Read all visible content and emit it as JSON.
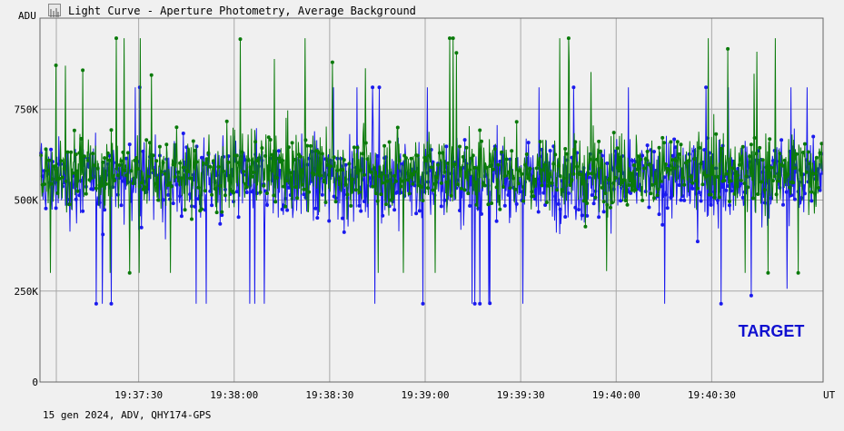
{
  "window": {
    "title": "Light Curve - Aperture Photometry, Average Background",
    "footer": "15 gen 2024, ADV, QHY174-GPS",
    "title_icon": "light-curve-icon"
  },
  "chart_data": {
    "type": "line",
    "title": "Light Curve - Aperture Photometry, Average Background",
    "ylabel": "ADU",
    "xlabel": "UT",
    "ylim": [
      0,
      1000000
    ],
    "yticks": [
      0,
      250000,
      500000,
      750000
    ],
    "ytick_labels": [
      "0",
      "250K",
      "500K",
      "750K"
    ],
    "xlim": [
      "19:36:59",
      "19:41:05"
    ],
    "xticks": [
      "19:37:30",
      "19:38:00",
      "19:38:30",
      "19:39:00",
      "19:39:30",
      "19:40:00",
      "19:40:30"
    ],
    "grid": true,
    "annotation": "TARGET",
    "annotation_color": "#1010d0",
    "series": [
      {
        "color": "#1a1aee",
        "mean": 555000,
        "typical_range": [
          350000,
          780000
        ],
        "min": 215000,
        "max": 810000
      },
      {
        "color": "#0a7a0a",
        "mean": 580000,
        "typical_range": [
          400000,
          800000
        ],
        "min": 300000,
        "max": 945000
      }
    ],
    "colors": {
      "background": "#f0f0f0",
      "plot_background": "#f0f0f0",
      "grid": "#a8a8a8",
      "axis": "#333333"
    }
  }
}
